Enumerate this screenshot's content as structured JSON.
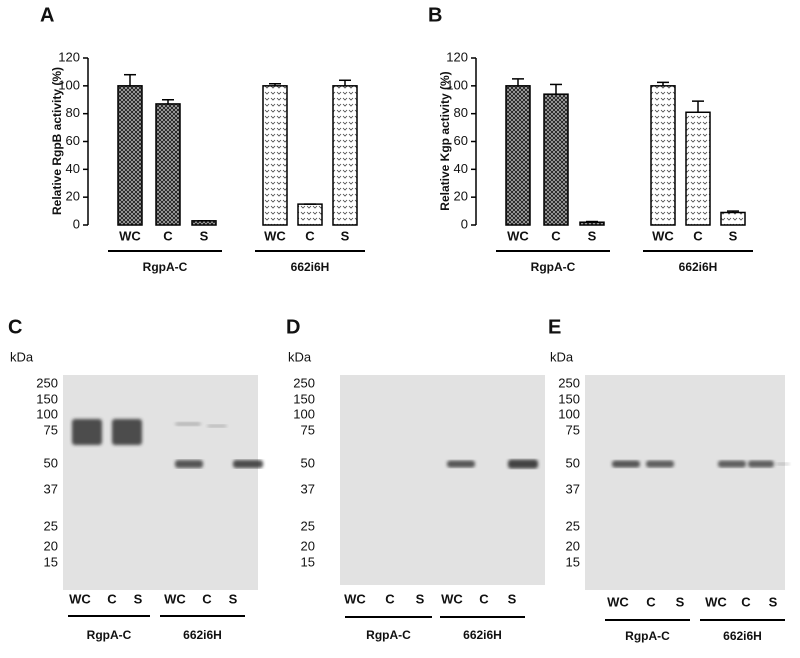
{
  "chart_data": [
    {
      "type": "bar",
      "title": "A",
      "y_label": "Relative RgpB activity (%)",
      "ylim": [
        0,
        120
      ],
      "yticks": [
        0,
        20,
        40,
        60,
        80,
        100,
        120
      ],
      "groups": [
        {
          "label": "RgpA-C",
          "categories": [
            "WC",
            "C",
            "S"
          ],
          "values": [
            100,
            87,
            3
          ],
          "errors": [
            8,
            3,
            0
          ]
        },
        {
          "label": "662i6H",
          "categories": [
            "WC",
            "C",
            "S"
          ],
          "values": [
            100,
            15,
            100
          ],
          "errors": [
            1.5,
            0,
            4
          ]
        }
      ]
    },
    {
      "type": "bar",
      "title": "B",
      "y_label": "Relative Kgp activity (%)",
      "ylim": [
        0,
        120
      ],
      "yticks": [
        0,
        20,
        40,
        60,
        80,
        100,
        120
      ],
      "groups": [
        {
          "label": "RgpA-C",
          "categories": [
            "WC",
            "C",
            "S"
          ],
          "values": [
            100,
            94,
            2
          ],
          "errors": [
            5,
            7,
            0.5
          ]
        },
        {
          "label": "662i6H",
          "categories": [
            "WC",
            "C",
            "S"
          ],
          "values": [
            100,
            81,
            9
          ],
          "errors": [
            2.5,
            8,
            1
          ]
        }
      ]
    }
  ],
  "gels": [
    {
      "title": "C",
      "unit": "kDa",
      "markers": [
        250,
        150,
        100,
        75,
        50,
        37,
        25,
        20,
        15
      ],
      "groups": [
        {
          "label": "RgpA-C",
          "lanes": [
            "WC",
            "C",
            "S"
          ]
        },
        {
          "label": "662i6H",
          "lanes": [
            "WC",
            "C",
            "S"
          ]
        }
      ]
    },
    {
      "title": "D",
      "unit": "kDa",
      "markers": [
        250,
        150,
        100,
        75,
        50,
        37,
        25,
        20,
        15
      ],
      "groups": [
        {
          "label": "RgpA-C",
          "lanes": [
            "WC",
            "C",
            "S"
          ]
        },
        {
          "label": "662i6H",
          "lanes": [
            "WC",
            "C",
            "S"
          ]
        }
      ]
    },
    {
      "title": "E",
      "unit": "kDa",
      "markers": [
        250,
        150,
        100,
        75,
        50,
        37,
        25,
        20,
        15
      ],
      "groups": [
        {
          "label": "RgpA-C",
          "lanes": [
            "WC",
            "C",
            "S"
          ]
        },
        {
          "label": "662i6H",
          "lanes": [
            "WC",
            "C",
            "S"
          ]
        }
      ]
    }
  ]
}
